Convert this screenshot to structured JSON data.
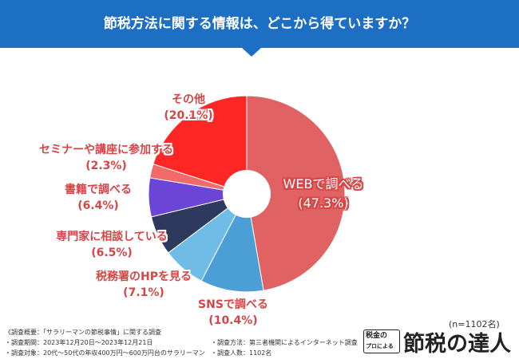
{
  "header": {
    "title": "節税方法に関する情報は、どこから得ていますか？"
  },
  "chart_data": {
    "type": "pie",
    "title": "節税方法に関する情報は、どこから得ていますか？",
    "sample_size": "(n=1102名)",
    "slices": [
      {
        "label": "WEBで調べる",
        "value": 47.3,
        "pct_label": "(47.3%)",
        "color": "#e06262"
      },
      {
        "label": "SNSで調べる",
        "value": 10.4,
        "pct_label": "(10.4%)",
        "color": "#4c9fd6"
      },
      {
        "label": "税務署のHPを見る",
        "value": 7.1,
        "pct_label": "(7.1%)",
        "color": "#6fbde6"
      },
      {
        "label": "専門家に相談している",
        "value": 6.5,
        "pct_label": "(6.5%)",
        "color": "#2d3a5e"
      },
      {
        "label": "書籍で調べる",
        "value": 6.4,
        "pct_label": "(6.4%)",
        "color": "#6a45d6"
      },
      {
        "label": "セミナーや講座に参加する",
        "value": 2.3,
        "pct_label": "(2.3%)",
        "color": "#f26a6a"
      },
      {
        "label": "その他",
        "value": 20.1,
        "pct_label": "(20.1%)",
        "color": "#ff2626"
      }
    ]
  },
  "notes": {
    "overview": "《調査概要：「サラリーマンの節税事情」に関する調査",
    "period": "・調査期間：2023年12月20日〜2023年12月21日",
    "method": "・調査方法：第三者機関によるインターネット調査",
    "target": "・調査対象：20代〜50代の年収400万円〜600万円台のサラリーマン",
    "count": "・調査人数：1102名"
  },
  "brand": {
    "badge_line1": "税金の",
    "badge_line2": "プロによる",
    "name": "節税の達人"
  }
}
